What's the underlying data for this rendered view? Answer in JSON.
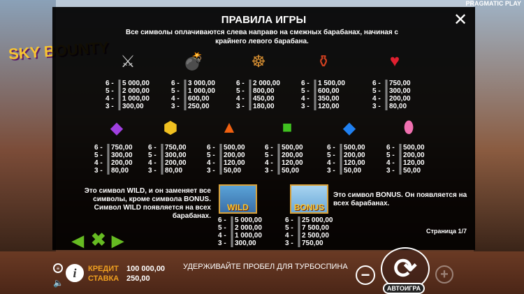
{
  "brand": "PRAGMATIC PLAY",
  "logo": "SKY BOUNTY",
  "rules": {
    "title": "ПРАВИЛА ИГРЫ",
    "subtitle": "Все символы оплачиваются слева направо на смежных барабанах, начиная с крайнего левого барабана.",
    "row1": [
      {
        "icon": "crossed-swords-icon",
        "glyph": "⚔",
        "color": "#ccc",
        "pays": [
          "5 000,00",
          "2 000,00",
          "1 000,00",
          "300,00"
        ]
      },
      {
        "icon": "cannon-icon",
        "glyph": "💣",
        "color": "#e5a030",
        "pays": [
          "3 000,00",
          "1 000,00",
          "600,00",
          "250,00"
        ]
      },
      {
        "icon": "ship-wheel-icon",
        "glyph": "☸",
        "color": "#d08a30",
        "pays": [
          "2 000,00",
          "800,00",
          "450,00",
          "180,00"
        ]
      },
      {
        "icon": "potion-bottle-icon",
        "glyph": "⚱",
        "color": "#d04020",
        "pays": [
          "1 500,00",
          "600,00",
          "350,00",
          "120,00"
        ]
      },
      {
        "icon": "red-heart-gem-icon",
        "glyph": "♥",
        "color": "#e02030",
        "pays": [
          "750,00",
          "300,00",
          "200,00",
          "80,00"
        ]
      }
    ],
    "row2": [
      {
        "icon": "purple-gem-icon",
        "glyph": "◆",
        "color": "#a040e0",
        "pays": [
          "750,00",
          "300,00",
          "200,00",
          "80,00"
        ]
      },
      {
        "icon": "yellow-gem-icon",
        "glyph": "⬢",
        "color": "#f0c020",
        "pays": [
          "750,00",
          "300,00",
          "200,00",
          "80,00"
        ]
      },
      {
        "icon": "orange-gem-icon",
        "glyph": "▲",
        "color": "#f06010",
        "pays": [
          "500,00",
          "200,00",
          "120,00",
          "50,00"
        ]
      },
      {
        "icon": "green-gem-icon",
        "glyph": "■",
        "color": "#40c020",
        "pays": [
          "500,00",
          "200,00",
          "120,00",
          "50,00"
        ]
      },
      {
        "icon": "blue-gem-icon",
        "glyph": "◆",
        "color": "#2080f0",
        "pays": [
          "500,00",
          "200,00",
          "120,00",
          "50,00"
        ]
      },
      {
        "icon": "pink-gem-icon",
        "glyph": "⬮",
        "color": "#f070b0",
        "pays": [
          "500,00",
          "200,00",
          "120,00",
          "50,00"
        ]
      }
    ],
    "counts": [
      "6 -",
      "5 -",
      "4 -",
      "3 -"
    ],
    "wild": {
      "label": "WILD",
      "desc": "Это символ WILD, и он заменяет все символы, кроме символа BONUS. Символ WILD появляется на всех барабанах.",
      "pays": [
        "5 000,00",
        "2 000,00",
        "1 000,00",
        "300,00"
      ]
    },
    "bonus": {
      "label": "BONUS",
      "desc": "Это символ BONUS. Он появляется на всех барабанах.",
      "pays": [
        "25 000,00",
        "7 500,00",
        "2 500,00",
        "750,00"
      ]
    },
    "page": "Страница 1/7",
    "close": "✕"
  },
  "bottom": {
    "credit_label": "КРЕДИТ",
    "credit": "100 000,00",
    "bet_label": "СТАВКА",
    "bet": "250,00",
    "hint": "УДЕРЖИВАЙТЕ ПРОБЕЛ ДЛЯ ТУРБОСПИНА",
    "autoplay": "АВТОИГРА"
  }
}
